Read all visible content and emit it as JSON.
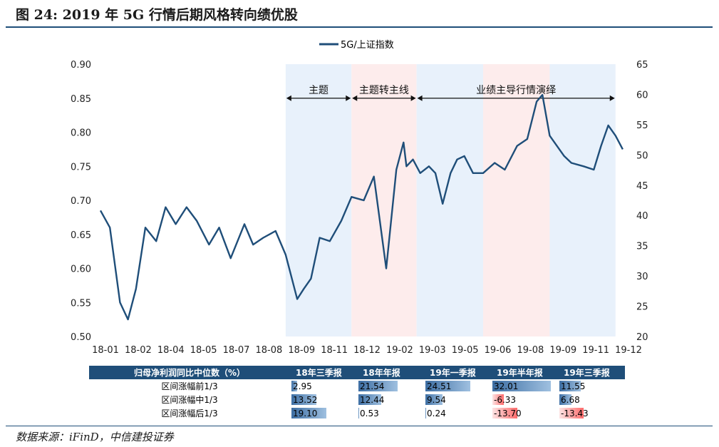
{
  "figure": {
    "title": "图 24: 2019 年 5G 行情后期风格转向绩优股",
    "source": "数据来源：iFinD，中信建投证券"
  },
  "chart_data": {
    "type": "line",
    "title": "图 24: 2019 年 5G 行情后期风格转向绩优股",
    "legend": "top-center",
    "grid": false,
    "series": [
      {
        "name": "5G/上证指数",
        "axis": "left",
        "color": "#1f4e79",
        "x": [
          "2018-01-02",
          "2018-01-15",
          "2018-01-29",
          "2018-02-09",
          "2018-02-20",
          "2018-03-05",
          "2018-03-20",
          "2018-04-02",
          "2018-04-16",
          "2018-05-01",
          "2018-05-15",
          "2018-06-01",
          "2018-06-15",
          "2018-07-01",
          "2018-07-20",
          "2018-08-01",
          "2018-08-15",
          "2018-09-01",
          "2018-09-15",
          "2018-10-01",
          "2018-10-10",
          "2018-10-20",
          "2018-11-01",
          "2018-11-15",
          "2018-12-01",
          "2018-12-15",
          "2019-01-01",
          "2019-01-15",
          "2019-02-01",
          "2019-02-15",
          "2019-02-25",
          "2019-03-01",
          "2019-03-10",
          "2019-03-20",
          "2019-04-01",
          "2019-04-10",
          "2019-04-20",
          "2019-05-01",
          "2019-05-10",
          "2019-05-20",
          "2019-06-01",
          "2019-06-15",
          "2019-07-01",
          "2019-07-15",
          "2019-08-01",
          "2019-08-15",
          "2019-08-28",
          "2019-09-05",
          "2019-09-15",
          "2019-09-25",
          "2019-10-05",
          "2019-10-15",
          "2019-11-01",
          "2019-11-15",
          "2019-11-25",
          "2019-12-05",
          "2019-12-15",
          "2019-12-25"
        ],
        "values": [
          0.685,
          0.66,
          0.55,
          0.525,
          0.57,
          0.66,
          0.64,
          0.69,
          0.665,
          0.69,
          0.67,
          0.635,
          0.66,
          0.615,
          0.665,
          0.635,
          0.645,
          0.655,
          0.62,
          0.555,
          0.57,
          0.585,
          0.645,
          0.64,
          0.67,
          0.705,
          0.7,
          0.735,
          0.6,
          0.745,
          0.785,
          0.75,
          0.76,
          0.74,
          0.75,
          0.74,
          0.695,
          0.74,
          0.76,
          0.765,
          0.74,
          0.74,
          0.755,
          0.745,
          0.78,
          0.79,
          0.845,
          0.855,
          0.795,
          0.78,
          0.765,
          0.755,
          0.75,
          0.745,
          0.78,
          0.81,
          0.795,
          0.775
        ]
      }
    ],
    "x_tick_labels": [
      "18-01",
      "18-02",
      "18-04",
      "18-05",
      "18-07",
      "18-08",
      "18-09",
      "18-11",
      "18-12",
      "19-02",
      "19-03",
      "19-05",
      "19-06",
      "19-08",
      "19-09",
      "19-11",
      "19-12"
    ],
    "y_left": {
      "ylim": [
        0.5,
        0.9
      ],
      "ticks": [
        "0.50",
        "0.55",
        "0.60",
        "0.65",
        "0.70",
        "0.75",
        "0.80",
        "0.85",
        "0.90"
      ]
    },
    "y_right": {
      "ylim": [
        20,
        65
      ],
      "ticks": [
        "20",
        "25",
        "30",
        "35",
        "40",
        "45",
        "50",
        "55",
        "60",
        "65"
      ]
    },
    "shaded_periods": [
      {
        "start": "2018-09-15",
        "end": "2018-12-15",
        "color": "#e8f1fb"
      },
      {
        "start": "2018-12-15",
        "end": "2019-03-15",
        "color": "#fdecec"
      },
      {
        "start": "2019-03-15",
        "end": "2019-06-15",
        "color": "#e8f1fb"
      },
      {
        "start": "2019-06-15",
        "end": "2019-09-15",
        "color": "#fdecec"
      },
      {
        "start": "2019-09-15",
        "end": "2019-12-15",
        "color": "#e8f1fb"
      }
    ],
    "annotations": [
      {
        "text": "主题",
        "start": "2018-09-15",
        "end": "2018-12-15",
        "y": 0.85
      },
      {
        "text": "主题转主线",
        "start": "2018-12-15",
        "end": "2019-03-15",
        "y": 0.85
      },
      {
        "text": "业绩主导行情演绎",
        "start": "2019-03-15",
        "end": "2019-12-15",
        "y": 0.85
      }
    ]
  },
  "table": {
    "header": [
      "归母净利润同比中位数（%）",
      "18年三季报",
      "18年年报",
      "19年一季报",
      "19年半年报",
      "19年三季报"
    ],
    "rows": [
      {
        "label": "区间涨幅前1/3",
        "values": [
          "2.95",
          "21.54",
          "24.51",
          "32.01",
          "11.55"
        ]
      },
      {
        "label": "区间涨幅中1/3",
        "values": [
          "13.52",
          "12.44",
          "9.54",
          "-6.33",
          "6.68"
        ]
      },
      {
        "label": "区间涨幅后1/3",
        "values": [
          "19.10",
          "0.53",
          "0.24",
          "-13.70",
          "-13.43"
        ]
      }
    ]
  }
}
